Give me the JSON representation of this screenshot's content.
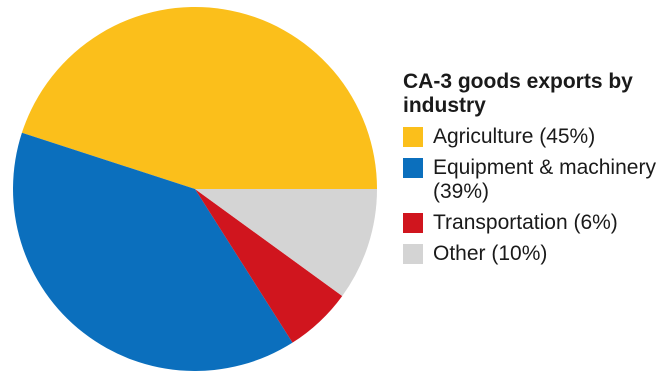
{
  "chart_data": {
    "type": "pie",
    "title": "CA-3 goods exports by industry",
    "slices": [
      {
        "label": "Agriculture (45%)",
        "value": 45,
        "color": "#fbbf1b"
      },
      {
        "label": "Equipment & machinery (39%)",
        "value": 39,
        "color": "#0b6fbd"
      },
      {
        "label": "Transportation (6%)",
        "value": 6,
        "color": "#d0151e"
      },
      {
        "label": "Other (10%)",
        "value": 10,
        "color": "#d4d4d4"
      }
    ],
    "legend_position": "right"
  }
}
